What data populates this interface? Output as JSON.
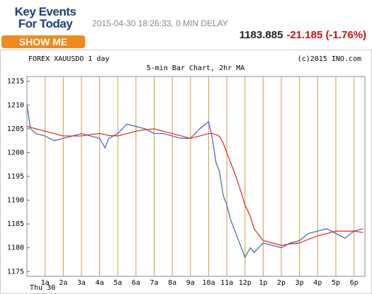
{
  "header": {
    "logo": "Key Events For Today",
    "button": "SHOW ME",
    "timestamp": "2015-04-30 18:26:33, 0 MIN DELAY",
    "price": "1183.885",
    "change": "-21.185 (-1.76%)"
  },
  "chart_data": {
    "type": "line",
    "symbol": "FOREX XAUUSDO 1 day",
    "copyright": "(c)2015 INO.com",
    "title": "5-min Bar Chart, 2hr MA",
    "date_label": "Thu 30",
    "x": [
      0,
      0.2,
      0.5,
      1,
      1.5,
      2,
      2.5,
      3,
      3.5,
      4,
      4.3,
      4.5,
      5,
      5.5,
      6,
      6.5,
      7,
      7.5,
      8,
      8.5,
      9,
      9.5,
      10,
      10.2,
      10.4,
      10.6,
      10.8,
      11,
      11.2,
      11.5,
      11.8,
      12,
      12.3,
      12.5,
      13,
      13.5,
      14,
      14.5,
      15,
      15.5,
      16,
      16.5,
      17,
      17.5,
      18,
      18.5
    ],
    "series": [
      {
        "color": "#3a64b0",
        "values": [
          1210,
          1205,
          1204,
          1203.5,
          1202.5,
          1203,
          1203.5,
          1204,
          1203.5,
          1203,
          1201,
          1203,
          1204,
          1206,
          1205.5,
          1205,
          1204,
          1204,
          1203.5,
          1203,
          1203,
          1205,
          1206.5,
          1203,
          1198,
          1196,
          1191,
          1189,
          1186,
          1183,
          1180,
          1178,
          1180,
          1179,
          1181,
          1180.5,
          1180,
          1181,
          1181.5,
          1183,
          1183.5,
          1184,
          1183,
          1182,
          1183.5,
          1184
        ]
      },
      {
        "color": "#e02020",
        "values": [
          1205.5,
          1205.3,
          1205,
          1204.5,
          1204,
          1203.5,
          1203.5,
          1203.5,
          1203.8,
          1204,
          1203.8,
          1203.6,
          1203.5,
          1204,
          1204.5,
          1204.8,
          1205,
          1204.5,
          1204,
          1203.5,
          1203,
          1203.5,
          1204,
          1204,
          1203.8,
          1203.4,
          1202,
          1200,
          1198,
          1195,
          1191.5,
          1189,
          1186.5,
          1184,
          1181.5,
          1181,
          1180.5,
          1180.8,
          1181,
          1181.8,
          1182.5,
          1183,
          1183.5,
          1183.5,
          1183.5,
          1183.2
        ]
      }
    ],
    "xlim": [
      0,
      18.6
    ],
    "xticks": [
      {
        "value": 1,
        "label": "1a"
      },
      {
        "value": 2,
        "label": "2a"
      },
      {
        "value": 3,
        "label": "3a"
      },
      {
        "value": 4,
        "label": "4a"
      },
      {
        "value": 5,
        "label": "5a"
      },
      {
        "value": 6,
        "label": "6a"
      },
      {
        "value": 7,
        "label": "7a"
      },
      {
        "value": 8,
        "label": "8a"
      },
      {
        "value": 9,
        "label": "9a"
      },
      {
        "value": 10,
        "label": "10a"
      },
      {
        "value": 11,
        "label": "11a"
      },
      {
        "value": 12,
        "label": "12p"
      },
      {
        "value": 13,
        "label": "1p"
      },
      {
        "value": 14,
        "label": "2p"
      },
      {
        "value": 15,
        "label": "3p"
      },
      {
        "value": 16,
        "label": "4p"
      },
      {
        "value": 17,
        "label": "5p"
      },
      {
        "value": 18,
        "label": "6p"
      }
    ],
    "ylim": [
      1174,
      1216
    ],
    "yticks": [
      1175,
      1180,
      1185,
      1190,
      1195,
      1200,
      1205,
      1210,
      1215
    ],
    "grid": "x",
    "grid_color": "#c9a042"
  }
}
